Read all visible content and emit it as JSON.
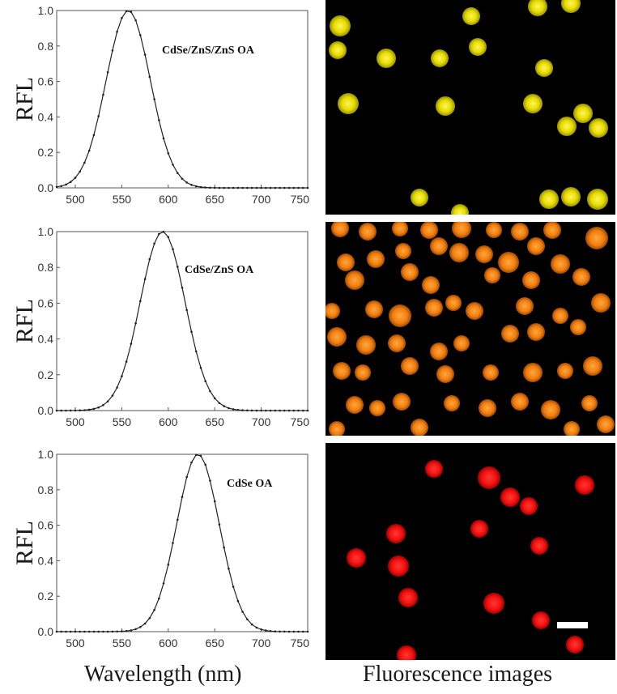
{
  "chart_data": [
    {
      "type": "line",
      "series": [
        {
          "name": "",
          "peak": 557,
          "fwhm": 56,
          "color": "#222222"
        }
      ],
      "annotation": "CdSe/ZnS/ZnS OA",
      "xlim": [
        480,
        750
      ],
      "ylim": [
        0,
        1.0
      ],
      "xticks": [
        500,
        550,
        600,
        650,
        700,
        750
      ],
      "yticks": [
        0.0,
        0.2,
        0.4,
        0.6,
        0.8,
        1.0
      ],
      "x_tick_labels": [
        "500",
        "550",
        "600",
        "650",
        "700",
        "750"
      ],
      "y_tick_labels": [
        "0.0",
        "0.2",
        "0.4",
        "0.6",
        "0.8",
        "1.0"
      ],
      "ylabel": "RFL",
      "xlabel": "",
      "sample_step": 5
    },
    {
      "type": "line",
      "series": [
        {
          "name": "",
          "peak": 594,
          "fwhm": 57,
          "color": "#222222"
        }
      ],
      "annotation": "CdSe/ZnS OA",
      "xlim": [
        480,
        750
      ],
      "ylim": [
        0,
        1.0
      ],
      "xticks": [
        500,
        550,
        600,
        650,
        700,
        750
      ],
      "yticks": [
        0.0,
        0.2,
        0.4,
        0.6,
        0.8,
        1.0
      ],
      "x_tick_labels": [
        "500",
        "550",
        "600",
        "650",
        "700",
        "750"
      ],
      "y_tick_labels": [
        "0.0",
        "0.2",
        "0.4",
        "0.6",
        "0.8",
        "1.0"
      ],
      "ylabel": "RFL",
      "xlabel": "",
      "sample_step": 5
    },
    {
      "type": "line",
      "series": [
        {
          "name": "",
          "peak": 632,
          "fwhm": 54,
          "color": "#222222"
        }
      ],
      "annotation": "CdSe OA",
      "xlim": [
        480,
        750
      ],
      "ylim": [
        0,
        1.0
      ],
      "xticks": [
        500,
        550,
        600,
        650,
        700,
        750
      ],
      "yticks": [
        0.0,
        0.2,
        0.4,
        0.6,
        0.8,
        1.0
      ],
      "x_tick_labels": [
        "500",
        "550",
        "600",
        "650",
        "700",
        "750"
      ],
      "y_tick_labels": [
        "0.0",
        "0.2",
        "0.4",
        "0.6",
        "0.8",
        "1.0"
      ],
      "ylabel": "RFL",
      "xlabel": "",
      "sample_step": 5
    }
  ],
  "labels": {
    "xlabel": "Wavelength (nm)",
    "micrographs": "Fluorescence images"
  },
  "micrographs": [
    {
      "name": "yellow-cells",
      "color": "#e8e000",
      "background": "#000000"
    },
    {
      "name": "orange-cells",
      "color": "#ff8a10",
      "background": "#000000"
    },
    {
      "name": "red-cells",
      "color": "#ff1010",
      "background": "#000000"
    }
  ]
}
